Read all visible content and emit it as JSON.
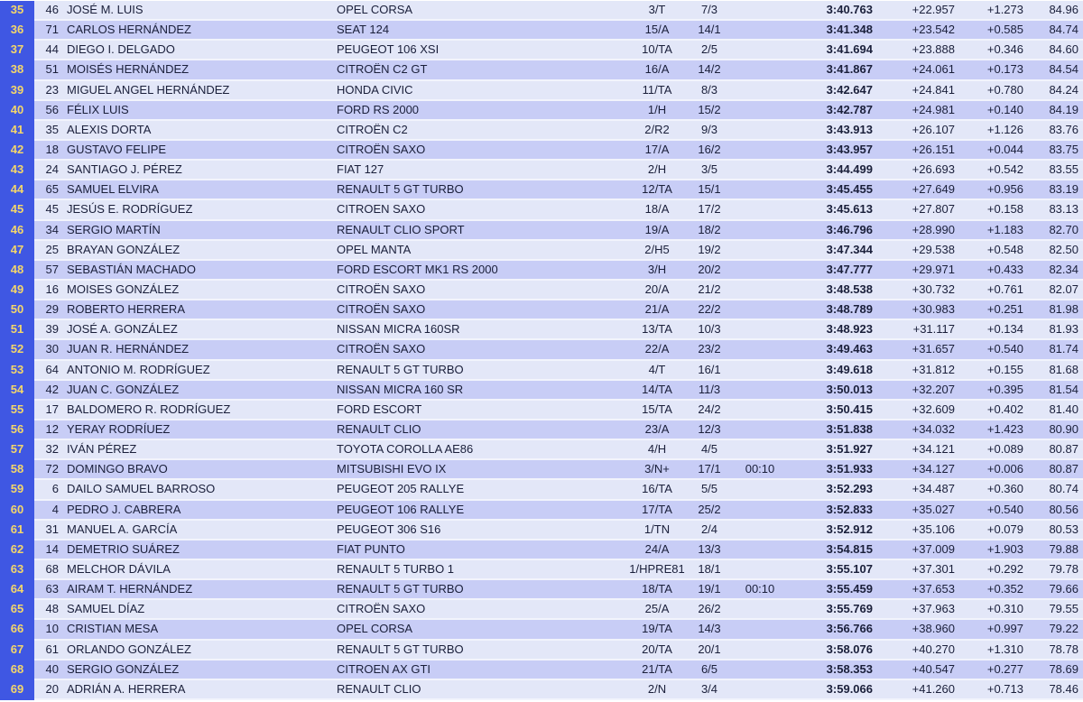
{
  "colors": {
    "position_column": "#3f57e3",
    "position_text": "#f4d76a",
    "row_odd": "#e3e7f8",
    "row_even": "#c8cdf6"
  },
  "rows": [
    {
      "pos": "35",
      "num": "46",
      "name": "JOSÉ M. LUIS",
      "car": "OPEL CORSA",
      "cls": "3/T",
      "clspos": "7/3",
      "pen": "",
      "time": "3:40.763",
      "diff": "+22.957",
      "prev": "+1.273",
      "speed": "84.96"
    },
    {
      "pos": "36",
      "num": "71",
      "name": "CARLOS HERNÁNDEZ",
      "car": "SEAT 124",
      "cls": "15/A",
      "clspos": "14/1",
      "pen": "",
      "time": "3:41.348",
      "diff": "+23.542",
      "prev": "+0.585",
      "speed": "84.74"
    },
    {
      "pos": "37",
      "num": "44",
      "name": "DIEGO I. DELGADO",
      "car": "PEUGEOT 106 XSI",
      "cls": "10/TA",
      "clspos": "2/5",
      "pen": "",
      "time": "3:41.694",
      "diff": "+23.888",
      "prev": "+0.346",
      "speed": "84.60"
    },
    {
      "pos": "38",
      "num": "51",
      "name": "MOISÉS HERNÁNDEZ",
      "car": "CITROËN C2 GT",
      "cls": "16/A",
      "clspos": "14/2",
      "pen": "",
      "time": "3:41.867",
      "diff": "+24.061",
      "prev": "+0.173",
      "speed": "84.54"
    },
    {
      "pos": "39",
      "num": "23",
      "name": "MIGUEL ANGEL HERNÁNDEZ",
      "car": "HONDA CIVIC",
      "cls": "11/TA",
      "clspos": "8/3",
      "pen": "",
      "time": "3:42.647",
      "diff": "+24.841",
      "prev": "+0.780",
      "speed": "84.24"
    },
    {
      "pos": "40",
      "num": "56",
      "name": "FÉLIX LUIS",
      "car": "FORD RS 2000",
      "cls": "1/H",
      "clspos": "15/2",
      "pen": "",
      "time": "3:42.787",
      "diff": "+24.981",
      "prev": "+0.140",
      "speed": "84.19"
    },
    {
      "pos": "41",
      "num": "35",
      "name": "ALEXIS DORTA",
      "car": "CITROËN C2",
      "cls": "2/R2",
      "clspos": "9/3",
      "pen": "",
      "time": "3:43.913",
      "diff": "+26.107",
      "prev": "+1.126",
      "speed": "83.76"
    },
    {
      "pos": "42",
      "num": "18",
      "name": "GUSTAVO FELIPE",
      "car": "CITROËN SAXO",
      "cls": "17/A",
      "clspos": "16/2",
      "pen": "",
      "time": "3:43.957",
      "diff": "+26.151",
      "prev": "+0.044",
      "speed": "83.75"
    },
    {
      "pos": "43",
      "num": "24",
      "name": "SANTIAGO J. PÉREZ",
      "car": "FIAT 127",
      "cls": "2/H",
      "clspos": "3/5",
      "pen": "",
      "time": "3:44.499",
      "diff": "+26.693",
      "prev": "+0.542",
      "speed": "83.55"
    },
    {
      "pos": "44",
      "num": "65",
      "name": "SAMUEL ELVIRA",
      "car": "RENAULT 5 GT TURBO",
      "cls": "12/TA",
      "clspos": "15/1",
      "pen": "",
      "time": "3:45.455",
      "diff": "+27.649",
      "prev": "+0.956",
      "speed": "83.19"
    },
    {
      "pos": "45",
      "num": "45",
      "name": "JESÚS E. RODRÍGUEZ",
      "car": "CITROEN SAXO",
      "cls": "18/A",
      "clspos": "17/2",
      "pen": "",
      "time": "3:45.613",
      "diff": "+27.807",
      "prev": "+0.158",
      "speed": "83.13"
    },
    {
      "pos": "46",
      "num": "34",
      "name": "SERGIO MARTÍN",
      "car": "RENAULT CLIO SPORT",
      "cls": "19/A",
      "clspos": "18/2",
      "pen": "",
      "time": "3:46.796",
      "diff": "+28.990",
      "prev": "+1.183",
      "speed": "82.70"
    },
    {
      "pos": "47",
      "num": "25",
      "name": "BRAYAN GONZÁLEZ",
      "car": "OPEL MANTA",
      "cls": "2/H5",
      "clspos": "19/2",
      "pen": "",
      "time": "3:47.344",
      "diff": "+29.538",
      "prev": "+0.548",
      "speed": "82.50"
    },
    {
      "pos": "48",
      "num": "57",
      "name": "SEBASTIÁN MACHADO",
      "car": "FORD ESCORT MK1 RS 2000",
      "cls": "3/H",
      "clspos": "20/2",
      "pen": "",
      "time": "3:47.777",
      "diff": "+29.971",
      "prev": "+0.433",
      "speed": "82.34"
    },
    {
      "pos": "49",
      "num": "16",
      "name": "MOISES GONZÁLEZ",
      "car": "CITROËN SAXO",
      "cls": "20/A",
      "clspos": "21/2",
      "pen": "",
      "time": "3:48.538",
      "diff": "+30.732",
      "prev": "+0.761",
      "speed": "82.07"
    },
    {
      "pos": "50",
      "num": "29",
      "name": "ROBERTO HERRERA",
      "car": "CITROËN SAXO",
      "cls": "21/A",
      "clspos": "22/2",
      "pen": "",
      "time": "3:48.789",
      "diff": "+30.983",
      "prev": "+0.251",
      "speed": "81.98"
    },
    {
      "pos": "51",
      "num": "39",
      "name": "JOSÉ A. GONZÁLEZ",
      "car": "NISSAN MICRA 160SR",
      "cls": "13/TA",
      "clspos": "10/3",
      "pen": "",
      "time": "3:48.923",
      "diff": "+31.117",
      "prev": "+0.134",
      "speed": "81.93"
    },
    {
      "pos": "52",
      "num": "30",
      "name": "JUAN R. HERNÁNDEZ",
      "car": "CITROËN SAXO",
      "cls": "22/A",
      "clspos": "23/2",
      "pen": "",
      "time": "3:49.463",
      "diff": "+31.657",
      "prev": "+0.540",
      "speed": "81.74"
    },
    {
      "pos": "53",
      "num": "64",
      "name": "ANTONIO M. RODRÍGUEZ",
      "car": "RENAULT 5 GT TURBO",
      "cls": "4/T",
      "clspos": "16/1",
      "pen": "",
      "time": "3:49.618",
      "diff": "+31.812",
      "prev": "+0.155",
      "speed": "81.68"
    },
    {
      "pos": "54",
      "num": "42",
      "name": "JUAN C. GONZÁLEZ",
      "car": "NISSAN MICRA 160 SR",
      "cls": "14/TA",
      "clspos": "11/3",
      "pen": "",
      "time": "3:50.013",
      "diff": "+32.207",
      "prev": "+0.395",
      "speed": "81.54"
    },
    {
      "pos": "55",
      "num": "17",
      "name": "BALDOMERO R. RODRÍGUEZ",
      "car": "FORD ESCORT",
      "cls": "15/TA",
      "clspos": "24/2",
      "pen": "",
      "time": "3:50.415",
      "diff": "+32.609",
      "prev": "+0.402",
      "speed": "81.40"
    },
    {
      "pos": "56",
      "num": "12",
      "name": "YERAY RODRÍUEZ",
      "car": "RENAULT CLIO",
      "cls": "23/A",
      "clspos": "12/3",
      "pen": "",
      "time": "3:51.838",
      "diff": "+34.032",
      "prev": "+1.423",
      "speed": "80.90"
    },
    {
      "pos": "57",
      "num": "32",
      "name": "IVÁN PÉREZ",
      "car": "TOYOTA COROLLA AE86",
      "cls": "4/H",
      "clspos": "4/5",
      "pen": "",
      "time": "3:51.927",
      "diff": "+34.121",
      "prev": "+0.089",
      "speed": "80.87"
    },
    {
      "pos": "58",
      "num": "72",
      "name": "DOMINGO BRAVO",
      "car": "MITSUBISHI EVO IX",
      "cls": "3/N+",
      "clspos": "17/1",
      "pen": "00:10",
      "time": "3:51.933",
      "diff": "+34.127",
      "prev": "+0.006",
      "speed": "80.87"
    },
    {
      "pos": "59",
      "num": "6",
      "name": "DAILO SAMUEL BARROSO",
      "car": "PEUGEOT 205 RALLYE",
      "cls": "16/TA",
      "clspos": "5/5",
      "pen": "",
      "time": "3:52.293",
      "diff": "+34.487",
      "prev": "+0.360",
      "speed": "80.74"
    },
    {
      "pos": "60",
      "num": "4",
      "name": "PEDRO J. CABRERA",
      "car": "PEUGEOT 106 RALLYE",
      "cls": "17/TA",
      "clspos": "25/2",
      "pen": "",
      "time": "3:52.833",
      "diff": "+35.027",
      "prev": "+0.540",
      "speed": "80.56"
    },
    {
      "pos": "61",
      "num": "31",
      "name": "MANUEL A. GARCÍA",
      "car": "PEUGEOT 306 S16",
      "cls": "1/TN",
      "clspos": "2/4",
      "pen": "",
      "time": "3:52.912",
      "diff": "+35.106",
      "prev": "+0.079",
      "speed": "80.53"
    },
    {
      "pos": "62",
      "num": "14",
      "name": "DEMETRIO SUÁREZ",
      "car": "FIAT PUNTO",
      "cls": "24/A",
      "clspos": "13/3",
      "pen": "",
      "time": "3:54.815",
      "diff": "+37.009",
      "prev": "+1.903",
      "speed": "79.88"
    },
    {
      "pos": "63",
      "num": "68",
      "name": "MELCHOR DÁVILA",
      "car": "RENAULT 5 TURBO 1",
      "cls": "1/HPRE81",
      "clspos": "18/1",
      "pen": "",
      "time": "3:55.107",
      "diff": "+37.301",
      "prev": "+0.292",
      "speed": "79.78"
    },
    {
      "pos": "64",
      "num": "63",
      "name": "AIRAM T. HERNÁNDEZ",
      "car": "RENAULT 5 GT TURBO",
      "cls": "18/TA",
      "clspos": "19/1",
      "pen": "00:10",
      "time": "3:55.459",
      "diff": "+37.653",
      "prev": "+0.352",
      "speed": "79.66"
    },
    {
      "pos": "65",
      "num": "48",
      "name": "SAMUEL DÍAZ",
      "car": "CITROËN SAXO",
      "cls": "25/A",
      "clspos": "26/2",
      "pen": "",
      "time": "3:55.769",
      "diff": "+37.963",
      "prev": "+0.310",
      "speed": "79.55"
    },
    {
      "pos": "66",
      "num": "10",
      "name": "CRISTIAN MESA",
      "car": "OPEL CORSA",
      "cls": "19/TA",
      "clspos": "14/3",
      "pen": "",
      "time": "3:56.766",
      "diff": "+38.960",
      "prev": "+0.997",
      "speed": "79.22"
    },
    {
      "pos": "67",
      "num": "61",
      "name": "ORLANDO GONZÁLEZ",
      "car": "RENAULT 5 GT TURBO",
      "cls": "20/TA",
      "clspos": "20/1",
      "pen": "",
      "time": "3:58.076",
      "diff": "+40.270",
      "prev": "+1.310",
      "speed": "78.78"
    },
    {
      "pos": "68",
      "num": "40",
      "name": "SERGIO GONZÁLEZ",
      "car": "CITROEN AX GTI",
      "cls": "21/TA",
      "clspos": "6/5",
      "pen": "",
      "time": "3:58.353",
      "diff": "+40.547",
      "prev": "+0.277",
      "speed": "78.69"
    },
    {
      "pos": "69",
      "num": "20",
      "name": "ADRIÁN A. HERRERA",
      "car": "RENAULT CLIO",
      "cls": "2/N",
      "clspos": "3/4",
      "pen": "",
      "time": "3:59.066",
      "diff": "+41.260",
      "prev": "+0.713",
      "speed": "78.46"
    }
  ]
}
